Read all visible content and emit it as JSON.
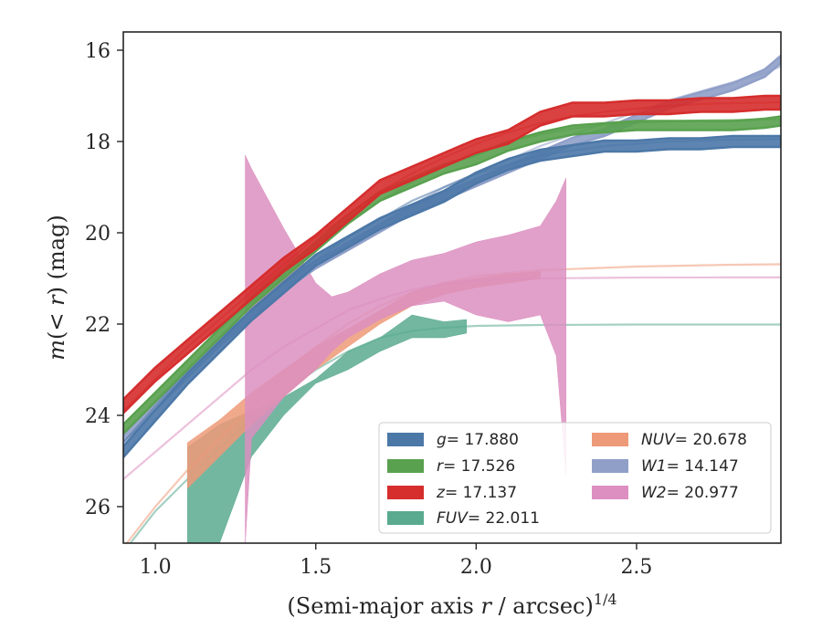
{
  "chart_data": {
    "type": "line",
    "xlabel": "(Semi-major axis r / arcsec)",
    "xlabel_parts": {
      "prefix": "(Semi-major axis ",
      "var": "r",
      "suffix": " / arcsec)",
      "exponent": "1/4"
    },
    "ylabel": "m(< r) (mag)",
    "ylabel_parts": {
      "var": "m",
      "open": "(",
      "inner": "< r",
      "close": ")",
      "unit": " (mag)"
    },
    "xlim": [
      0.9,
      2.95
    ],
    "ylim": [
      26.8,
      15.6
    ],
    "y_inverted": true,
    "xticks": [
      1.0,
      1.5,
      2.0,
      2.5
    ],
    "xtick_labels": [
      "1.0",
      "1.5",
      "2.0",
      "2.5"
    ],
    "yticks": [
      16,
      18,
      20,
      22,
      24,
      26
    ],
    "ytick_labels": [
      "16",
      "18",
      "20",
      "22",
      "24",
      "26"
    ],
    "legend_position": "lower-right",
    "series": [
      {
        "name": "g = 17.880",
        "label_var": "g",
        "label_value": "= 17.880",
        "color": "#4c78a8",
        "x": [
          0.9,
          1.0,
          1.1,
          1.2,
          1.3,
          1.4,
          1.5,
          1.6,
          1.7,
          1.8,
          1.9,
          2.0,
          2.1,
          2.2,
          2.3,
          2.4,
          2.5,
          2.6,
          2.7,
          2.8,
          2.9,
          2.95
        ],
        "y": [
          24.8,
          24.0,
          23.2,
          22.5,
          21.8,
          21.2,
          20.6,
          20.2,
          19.8,
          19.5,
          19.2,
          18.8,
          18.5,
          18.3,
          18.2,
          18.1,
          18.1,
          18.05,
          18.05,
          18.0,
          18.0,
          18.0
        ],
        "band_halfwidth": 0.12,
        "model_y": [
          24.6,
          23.8,
          23.0,
          22.3,
          21.7,
          21.1,
          20.6,
          20.1,
          19.7,
          19.3,
          19.0,
          18.7,
          18.5,
          18.3,
          18.2,
          18.1,
          18.05,
          18.0,
          17.98,
          17.96,
          17.95,
          17.94
        ]
      },
      {
        "name": "r = 17.526",
        "label_var": "r",
        "label_value": "= 17.526",
        "color": "#59a14f",
        "x": [
          0.9,
          1.0,
          1.1,
          1.2,
          1.3,
          1.4,
          1.5,
          1.6,
          1.7,
          1.8,
          1.9,
          2.0,
          2.1,
          2.2,
          2.3,
          2.4,
          2.5,
          2.6,
          2.7,
          2.8,
          2.9,
          2.95
        ],
        "y": [
          24.3,
          23.6,
          22.9,
          22.2,
          21.5,
          20.9,
          20.3,
          19.7,
          19.2,
          18.9,
          18.6,
          18.4,
          18.1,
          17.9,
          17.75,
          17.7,
          17.65,
          17.65,
          17.65,
          17.65,
          17.6,
          17.55
        ],
        "band_halfwidth": 0.1,
        "model_y": [
          24.2,
          23.5,
          22.8,
          22.1,
          21.5,
          20.9,
          20.3,
          19.8,
          19.3,
          18.9,
          18.55,
          18.25,
          18.0,
          17.85,
          17.72,
          17.64,
          17.59,
          17.56,
          17.54,
          17.53,
          17.52,
          17.52
        ]
      },
      {
        "name": "z = 17.137",
        "label_var": "z",
        "label_value": "= 17.137",
        "color": "#d62d2d",
        "x": [
          0.9,
          1.0,
          1.1,
          1.2,
          1.3,
          1.4,
          1.5,
          1.6,
          1.7,
          1.8,
          1.9,
          2.0,
          2.1,
          2.2,
          2.3,
          2.4,
          2.5,
          2.6,
          2.7,
          2.8,
          2.9,
          2.95
        ],
        "y": [
          23.8,
          23.1,
          22.5,
          21.9,
          21.3,
          20.7,
          20.2,
          19.6,
          19.0,
          18.7,
          18.4,
          18.1,
          17.9,
          17.5,
          17.3,
          17.3,
          17.25,
          17.25,
          17.2,
          17.2,
          17.15,
          17.15
        ],
        "band_halfwidth": 0.15,
        "model_y": [
          23.9,
          23.2,
          22.5,
          21.9,
          21.3,
          20.7,
          20.1,
          19.6,
          19.1,
          18.7,
          18.35,
          18.05,
          17.8,
          17.6,
          17.45,
          17.35,
          17.28,
          17.22,
          17.18,
          17.16,
          17.15,
          17.14
        ]
      },
      {
        "name": "FUV = 22.011",
        "label_var": "FUV",
        "label_value": "= 22.011",
        "color": "#5aaa90",
        "x": [
          1.1,
          1.2,
          1.3,
          1.4,
          1.5,
          1.6,
          1.7,
          1.8,
          1.9,
          1.97
        ],
        "y_upper": [
          24.7,
          24.2,
          23.9,
          23.6,
          23.2,
          22.6,
          22.3,
          21.8,
          21.95,
          21.9
        ],
        "y_lower": [
          26.8,
          26.8,
          24.9,
          24.0,
          23.3,
          23.0,
          22.6,
          22.3,
          22.3,
          22.2
        ],
        "model_x": [
          0.9,
          1.0,
          1.1,
          1.2,
          1.3,
          1.4,
          1.5,
          1.6,
          1.7,
          1.8,
          1.9,
          2.0,
          2.2,
          2.5,
          2.8,
          2.95
        ],
        "model_y": [
          27.0,
          26.1,
          25.4,
          24.7,
          24.1,
          23.5,
          23.0,
          22.6,
          22.3,
          22.15,
          22.08,
          22.04,
          22.02,
          22.01,
          22.01,
          22.01
        ]
      },
      {
        "name": "NUV = 20.678",
        "label_var": "NUV",
        "label_value": "= 20.678",
        "color": "#ee9a78",
        "x": [
          1.1,
          1.2,
          1.3,
          1.4,
          1.5,
          1.6,
          1.7,
          1.8,
          1.9,
          2.0,
          2.1,
          2.2
        ],
        "y_upper": [
          24.6,
          24.1,
          23.5,
          23.0,
          22.5,
          22.1,
          21.7,
          21.3,
          21.1,
          21.0,
          20.9,
          20.85
        ],
        "y_lower": [
          25.6,
          24.9,
          24.2,
          23.6,
          23.0,
          22.5,
          22.0,
          21.6,
          21.35,
          21.2,
          21.1,
          21.0
        ],
        "model_x": [
          0.9,
          1.0,
          1.1,
          1.2,
          1.3,
          1.4,
          1.5,
          1.6,
          1.7,
          1.8,
          1.9,
          2.0,
          2.2,
          2.5,
          2.8,
          2.95
        ],
        "model_y": [
          26.9,
          26.0,
          25.2,
          24.5,
          23.8,
          23.1,
          22.5,
          22.0,
          21.6,
          21.3,
          21.1,
          20.95,
          20.82,
          20.74,
          20.7,
          20.69
        ]
      },
      {
        "name": "W1 = 14.147",
        "label_var": "W1",
        "label_value": "= 14.147",
        "color": "#8f9fc8",
        "x": [
          0.9,
          1.0,
          1.1,
          1.2,
          1.3,
          1.4,
          1.5,
          1.6,
          1.7,
          1.8,
          1.9,
          2.0,
          2.1,
          2.2,
          2.3,
          2.4,
          2.5,
          2.6,
          2.7,
          2.8,
          2.9,
          2.95
        ],
        "y": [
          24.5,
          23.8,
          23.1,
          22.4,
          21.8,
          21.2,
          20.7,
          20.3,
          19.9,
          19.5,
          19.2,
          18.9,
          18.6,
          18.3,
          18.0,
          17.8,
          17.5,
          17.2,
          17.0,
          16.8,
          16.5,
          16.2
        ],
        "band_halfwidth": 0.08,
        "model_y": [
          24.4,
          23.7,
          23.0,
          22.4,
          21.8,
          21.2,
          20.7,
          20.2,
          19.8,
          19.4,
          19.0,
          18.7,
          18.4,
          18.1,
          17.85,
          17.6,
          17.35,
          17.1,
          16.9,
          16.7,
          16.5,
          16.35
        ]
      },
      {
        "name": "W2 = 20.977",
        "label_var": "W2",
        "label_value": "= 20.977",
        "color": "#dc8fc0",
        "x": [
          1.28,
          1.3,
          1.4,
          1.5,
          1.55,
          1.6,
          1.7,
          1.8,
          1.9,
          2.0,
          2.1,
          2.2,
          2.25,
          2.28
        ],
        "y_upper": [
          18.3,
          18.6,
          19.9,
          21.1,
          21.4,
          21.3,
          20.9,
          20.6,
          20.45,
          20.2,
          20.05,
          19.85,
          19.3,
          18.8
        ],
        "y_lower": [
          26.8,
          24.5,
          23.6,
          23.0,
          22.6,
          22.3,
          21.9,
          21.6,
          21.5,
          21.8,
          21.95,
          21.8,
          22.7,
          25.3
        ],
        "model_x": [
          0.9,
          1.0,
          1.1,
          1.2,
          1.3,
          1.4,
          1.5,
          1.6,
          1.7,
          1.8,
          1.9,
          2.0,
          2.2,
          2.5,
          2.8,
          2.95
        ],
        "model_y": [
          25.4,
          24.8,
          24.2,
          23.6,
          23.0,
          22.5,
          22.1,
          21.7,
          21.45,
          21.25,
          21.12,
          21.05,
          21.0,
          20.98,
          20.977,
          20.977
        ]
      }
    ]
  }
}
